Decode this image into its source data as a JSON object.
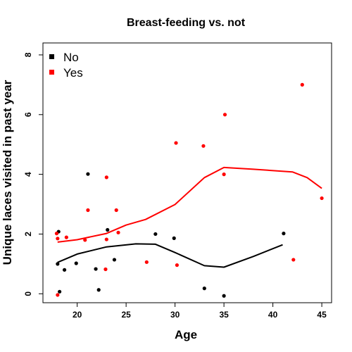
{
  "chart_data": {
    "type": "scatter",
    "title": "Breast-feeding vs. not",
    "xlabel": "Age",
    "ylabel": "Unique laces visited in past year",
    "xlim": [
      16.5,
      46.0
    ],
    "ylim": [
      -0.3,
      8.4
    ],
    "x_ticks": [
      20,
      25,
      30,
      35,
      40,
      45
    ],
    "y_ticks": [
      0,
      2,
      4,
      6,
      8
    ],
    "grid": false,
    "legend_position": "top-left",
    "series": [
      {
        "name": "No",
        "color": "#000000",
        "points": [
          {
            "x": 18.0,
            "y": 1.0
          },
          {
            "x": 18.1,
            "y": 2.08
          },
          {
            "x": 18.2,
            "y": 0.07
          },
          {
            "x": 18.7,
            "y": 0.8
          },
          {
            "x": 19.9,
            "y": 1.02
          },
          {
            "x": 21.1,
            "y": 4.01
          },
          {
            "x": 21.9,
            "y": 0.83
          },
          {
            "x": 22.2,
            "y": 0.13
          },
          {
            "x": 23.1,
            "y": 2.14
          },
          {
            "x": 23.8,
            "y": 1.14
          },
          {
            "x": 28.0,
            "y": 2.0
          },
          {
            "x": 29.9,
            "y": 1.86
          },
          {
            "x": 33.0,
            "y": 0.18
          },
          {
            "x": 35.0,
            "y": -0.07
          },
          {
            "x": 41.1,
            "y": 2.02
          }
        ],
        "smooth": [
          {
            "x": 18,
            "y": 1.05
          },
          {
            "x": 20,
            "y": 1.33
          },
          {
            "x": 23,
            "y": 1.57
          },
          {
            "x": 26,
            "y": 1.67
          },
          {
            "x": 28,
            "y": 1.66
          },
          {
            "x": 30,
            "y": 1.38
          },
          {
            "x": 33,
            "y": 0.94
          },
          {
            "x": 35,
            "y": 0.89
          },
          {
            "x": 38,
            "y": 1.25
          },
          {
            "x": 41,
            "y": 1.64
          }
        ]
      },
      {
        "name": "Yes",
        "color": "#ff0000",
        "points": [
          {
            "x": 17.9,
            "y": 2.02
          },
          {
            "x": 18.0,
            "y": 1.85
          },
          {
            "x": 18.0,
            "y": -0.04
          },
          {
            "x": 18.9,
            "y": 1.89
          },
          {
            "x": 20.8,
            "y": 1.8
          },
          {
            "x": 21.1,
            "y": 2.8
          },
          {
            "x": 22.9,
            "y": 0.82
          },
          {
            "x": 23.0,
            "y": 3.9
          },
          {
            "x": 23.0,
            "y": 1.82
          },
          {
            "x": 24.0,
            "y": 2.8
          },
          {
            "x": 24.2,
            "y": 2.05
          },
          {
            "x": 27.1,
            "y": 1.06
          },
          {
            "x": 30.1,
            "y": 5.05
          },
          {
            "x": 30.2,
            "y": 0.96
          },
          {
            "x": 32.9,
            "y": 4.95
          },
          {
            "x": 35.1,
            "y": 6.0
          },
          {
            "x": 35.0,
            "y": 4.0
          },
          {
            "x": 42.1,
            "y": 1.14
          },
          {
            "x": 43.0,
            "y": 7.0
          },
          {
            "x": 45.0,
            "y": 3.2
          }
        ],
        "smooth": [
          {
            "x": 18,
            "y": 1.73
          },
          {
            "x": 20,
            "y": 1.81
          },
          {
            "x": 23,
            "y": 2.02
          },
          {
            "x": 25,
            "y": 2.3
          },
          {
            "x": 27,
            "y": 2.49
          },
          {
            "x": 30,
            "y": 2.99
          },
          {
            "x": 33,
            "y": 3.89
          },
          {
            "x": 35,
            "y": 4.23
          },
          {
            "x": 38,
            "y": 4.17
          },
          {
            "x": 42,
            "y": 4.08
          },
          {
            "x": 43.5,
            "y": 3.89
          },
          {
            "x": 45,
            "y": 3.53
          }
        ]
      }
    ]
  }
}
